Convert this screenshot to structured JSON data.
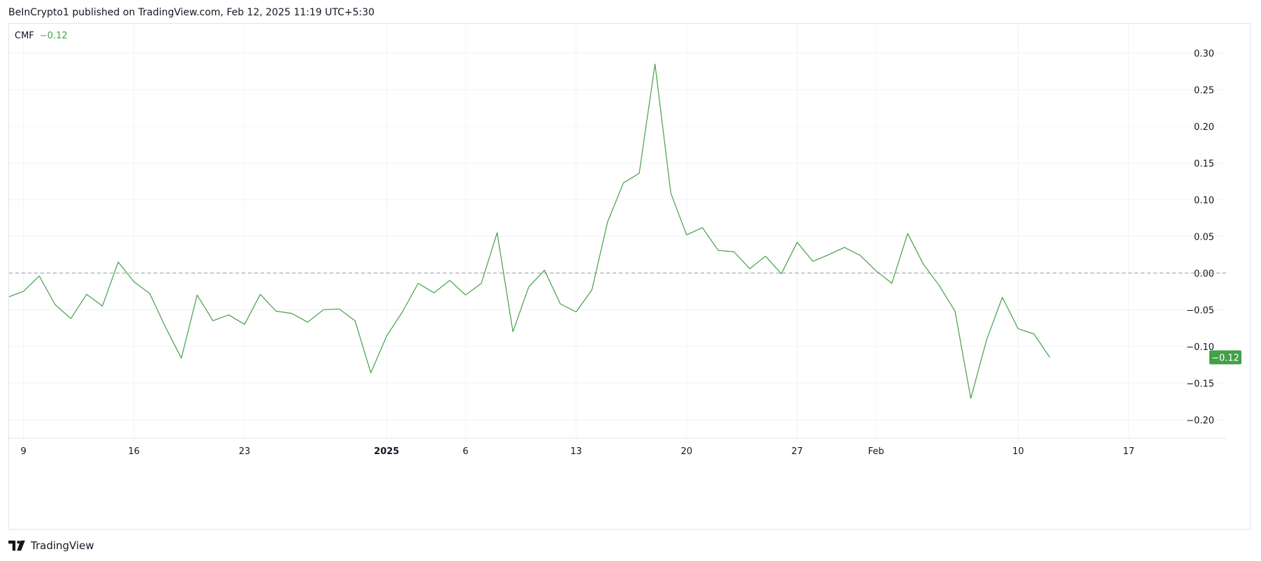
{
  "header": {
    "published": "BeInCrypto1 published on TradingView.com, Feb 12, 2025 11:19 UTC+5:30"
  },
  "footer": {
    "brand": "TradingView"
  },
  "colors": {
    "line": "#43a047",
    "badge": "#43a047",
    "grid": "#f0f3fa",
    "zero_line": "#9598a1",
    "axis_text": "#131722"
  },
  "chart_data": {
    "type": "line",
    "indicator_label": "CMF",
    "indicator_value": "−0.12",
    "last_value_label": "−0.12",
    "ylim": [
      -0.225,
      0.34
    ],
    "y_ticks": [
      0.3,
      0.25,
      0.2,
      0.15,
      0.1,
      0.05,
      0.0,
      -0.05,
      -0.1,
      -0.15,
      -0.2
    ],
    "y_tick_labels": [
      "0.30",
      "0.25",
      "0.20",
      "0.15",
      "0.10",
      "0.05",
      "0.00",
      "−0.05",
      "−0.10",
      "−0.15",
      "−0.20"
    ],
    "reference_line": 0.0,
    "x_ticks": [
      {
        "date": "2024-12-09",
        "label": "9",
        "bold": false
      },
      {
        "date": "2024-12-16",
        "label": "16",
        "bold": false
      },
      {
        "date": "2024-12-23",
        "label": "23",
        "bold": false
      },
      {
        "date": "2025-01-01",
        "label": "2025",
        "bold": true
      },
      {
        "date": "2025-01-06",
        "label": "6",
        "bold": false
      },
      {
        "date": "2025-01-13",
        "label": "13",
        "bold": false
      },
      {
        "date": "2025-01-20",
        "label": "20",
        "bold": false
      },
      {
        "date": "2025-01-27",
        "label": "27",
        "bold": false
      },
      {
        "date": "2025-02-01",
        "label": "Feb",
        "bold": false
      },
      {
        "date": "2025-02-10",
        "label": "10",
        "bold": false
      },
      {
        "date": "2025-02-17",
        "label": "17",
        "bold": false
      }
    ],
    "x": [
      "2024-12-08",
      "2024-12-09",
      "2024-12-10",
      "2024-12-11",
      "2024-12-12",
      "2024-12-13",
      "2024-12-14",
      "2024-12-15",
      "2024-12-16",
      "2024-12-17",
      "2024-12-18",
      "2024-12-19",
      "2024-12-20",
      "2024-12-21",
      "2024-12-22",
      "2024-12-23",
      "2024-12-24",
      "2024-12-25",
      "2024-12-26",
      "2024-12-27",
      "2024-12-28",
      "2024-12-29",
      "2024-12-30",
      "2024-12-31",
      "2025-01-01",
      "2025-01-02",
      "2025-01-03",
      "2025-01-04",
      "2025-01-05",
      "2025-01-06",
      "2025-01-07",
      "2025-01-08",
      "2025-01-09",
      "2025-01-10",
      "2025-01-11",
      "2025-01-12",
      "2025-01-13",
      "2025-01-14",
      "2025-01-15",
      "2025-01-16",
      "2025-01-17",
      "2025-01-18",
      "2025-01-19",
      "2025-01-20",
      "2025-01-21",
      "2025-01-22",
      "2025-01-23",
      "2025-01-24",
      "2025-01-25",
      "2025-01-26",
      "2025-01-27",
      "2025-01-28",
      "2025-01-29",
      "2025-01-30",
      "2025-01-31",
      "2025-02-01",
      "2025-02-02",
      "2025-02-03",
      "2025-02-04",
      "2025-02-05",
      "2025-02-06",
      "2025-02-07",
      "2025-02-08",
      "2025-02-09",
      "2025-02-10",
      "2025-02-11",
      "2025-02-12"
    ],
    "series": [
      {
        "values": [
          -0.033,
          -0.025,
          -0.004,
          -0.043,
          -0.062,
          -0.029,
          -0.045,
          0.015,
          -0.012,
          -0.028,
          -0.074,
          -0.116,
          -0.03,
          -0.065,
          -0.057,
          -0.07,
          -0.029,
          -0.052,
          -0.055,
          -0.067,
          -0.05,
          -0.049,
          -0.065,
          -0.136,
          -0.086,
          -0.053,
          -0.014,
          -0.027,
          -0.01,
          -0.03,
          -0.014,
          0.055,
          -0.08,
          -0.019,
          0.004,
          -0.042,
          -0.053,
          -0.023,
          0.07,
          0.123,
          0.136,
          0.285,
          0.109,
          0.052,
          0.062,
          0.031,
          0.029,
          0.006,
          0.023,
          -0.001,
          0.042,
          0.016,
          0.025,
          0.035,
          0.024,
          0.003,
          -0.014,
          0.054,
          0.012,
          -0.017,
          -0.052,
          -0.171,
          -0.091,
          -0.033,
          -0.076,
          -0.083,
          -0.115
        ]
      }
    ]
  }
}
